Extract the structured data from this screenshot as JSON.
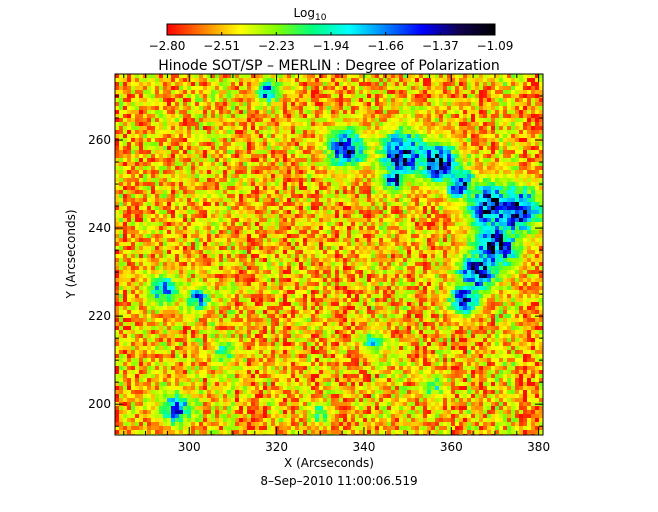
{
  "chart_data": {
    "type": "heatmap",
    "title": "Hinode SOT/SP – MERLIN : Degree of Polarization",
    "colorbar": {
      "label": "Log",
      "label_sub": "10",
      "ticks": [
        "−2.80",
        "−2.51",
        "−2.23",
        "−1.94",
        "−1.66",
        "−1.37",
        "−1.09"
      ],
      "range": [
        -2.8,
        -1.09
      ],
      "colormap": [
        "#ff0000",
        "#ff8000",
        "#ffff00",
        "#80ff00",
        "#00ff80",
        "#00ffff",
        "#0080ff",
        "#0000ff",
        "#100050",
        "#000000"
      ]
    },
    "xlabel": "X (Arcseconds)",
    "ylabel": "Y (Arcseconds)",
    "xlim": [
      283,
      381
    ],
    "ylim": [
      193,
      275
    ],
    "xticks": [
      300,
      320,
      340,
      360,
      380
    ],
    "yticks": [
      200,
      220,
      240,
      260
    ],
    "timestamp": "8–Sep–2010 11:00:06.519",
    "grid": false,
    "background_level": -2.78,
    "active_regions": [
      {
        "x": 336,
        "y": 258,
        "peak": -1.25,
        "spread": 5
      },
      {
        "x": 349,
        "y": 257,
        "peak": -1.15,
        "spread": 6
      },
      {
        "x": 357,
        "y": 255,
        "peak": -1.1,
        "spread": 5
      },
      {
        "x": 362,
        "y": 250,
        "peak": -1.25,
        "spread": 4
      },
      {
        "x": 369,
        "y": 245,
        "peak": -1.12,
        "spread": 6
      },
      {
        "x": 375,
        "y": 244,
        "peak": -1.1,
        "spread": 6
      },
      {
        "x": 370,
        "y": 236,
        "peak": -1.15,
        "spread": 6
      },
      {
        "x": 366,
        "y": 230,
        "peak": -1.18,
        "spread": 5
      },
      {
        "x": 363,
        "y": 224,
        "peak": -1.35,
        "spread": 4
      },
      {
        "x": 347,
        "y": 251,
        "peak": -1.3,
        "spread": 3
      },
      {
        "x": 318,
        "y": 271,
        "peak": -1.4,
        "spread": 3
      },
      {
        "x": 294,
        "y": 226,
        "peak": -1.55,
        "spread": 4
      },
      {
        "x": 302,
        "y": 224,
        "peak": -1.45,
        "spread": 3
      },
      {
        "x": 297,
        "y": 199,
        "peak": -1.4,
        "spread": 4
      },
      {
        "x": 342,
        "y": 214,
        "peak": -1.75,
        "spread": 3
      },
      {
        "x": 308,
        "y": 212,
        "peak": -1.8,
        "spread": 3
      },
      {
        "x": 356,
        "y": 204,
        "peak": -1.85,
        "spread": 3
      },
      {
        "x": 330,
        "y": 198,
        "peak": -1.9,
        "spread": 3
      }
    ]
  }
}
